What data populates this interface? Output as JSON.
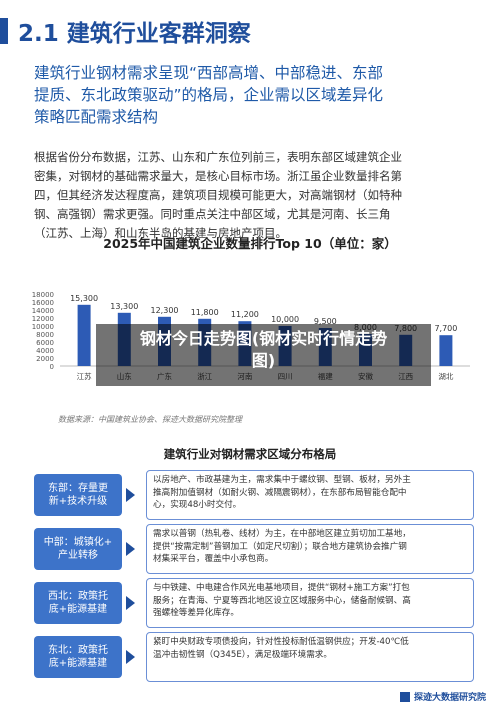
{
  "section": {
    "title": "2.1 建筑行业客群洞察"
  },
  "headline": {
    "line1": "建筑行业钢材需求呈现“西部高增、中部稳进、东部",
    "line2": "提质、东北政策驱动”的格局，企业需以区域差异化",
    "line3": "策略匹配需求结构"
  },
  "body": {
    "line1": "根据省份分布数据，江苏、山东和广东位列前三，表明东部区域建筑企业",
    "line2": "密集，对钢材的基础需求量大，是核心目标市场。浙江虽企业数量排名第",
    "line3": "四，但其经济发达程度高，建筑项目规模可能更大，对高端钢材（如特种",
    "line4": "钢、高强钢）需求更强。同时重点关注中部区域，尤其是河南、长三角",
    "line5": "（江苏、上海）和山东半岛的基建与房地产项目。"
  },
  "chart_data": {
    "type": "bar",
    "title": "2025年中国建筑企业数量排行Top 10（单位：家）",
    "categories": [
      "江苏",
      "山东",
      "广东",
      "浙江",
      "河南",
      "四川",
      "福建",
      "安徽",
      "江西",
      "湖北"
    ],
    "values": [
      15300,
      13300,
      12300,
      11800,
      11200,
      10000,
      9500,
      8000,
      7800,
      7700
    ],
    "data_labels": [
      "15,300",
      "13,300",
      "12,300",
      "11,800",
      "11,200",
      "10,000",
      "9,500",
      "8,000",
      "7,800",
      "7,700"
    ],
    "y_ticks": [
      "0",
      "2000",
      "4000",
      "6000",
      "8000",
      "10000",
      "12000",
      "14000",
      "16000",
      "18000"
    ],
    "ylim": [
      0,
      18000
    ],
    "bar_color": "#2d5bb5"
  },
  "overlay": {
    "line1": "钢材今日走势图(钢材实时行情走势",
    "line2": "图)"
  },
  "source": "数据来源：中国建筑业协会、探迹大数据研究院整理",
  "table": {
    "title": "建筑行业对钢材需求区域分布格局",
    "rows": [
      {
        "region_line1": "东部：存量更",
        "region_line2": "新+技术升级",
        "desc_line1": "以房地产、市政基建为主，需求集中于螺纹钢、型钢、板材，另外主",
        "desc_line2": "推高附加值钢材（如耐火钢、减隔震钢材），在东部布局智能仓配中",
        "desc_line3": "心，实现48小时交付。"
      },
      {
        "region_line1": "中部：城镇化+",
        "region_line2": "产业转移",
        "desc_line1": "需求以普钢（热轧卷、线材）为主，在中部地区建立剪切加工基地，",
        "desc_line2": "提供“按需定制”普钢加工（如定尺切割）；联合地方建筑协会推广钢",
        "desc_line3": "材集采平台，覆盖中小承包商。"
      },
      {
        "region_line1": "西北：政策托",
        "region_line2": "底+能源基建",
        "desc_line1": "与中铁建、中电建合作风光电基地项目，提供“钢材+施工方案”打包",
        "desc_line2": "服务；在青海、宁夏等西北地区设立区域服务中心，储备耐候钢、高",
        "desc_line3": "强螺栓等差异化库存。"
      },
      {
        "region_line1": "东北：政策托",
        "region_line2": "底+能源基建",
        "desc_line1": "紧盯中央财政专项债投向，针对性投标耐低温钢供应；开发-40℃低",
        "desc_line2": "温冲击韧性钢（Q345E），满足极端环境需求。",
        "desc_line3": ""
      }
    ]
  },
  "footer": {
    "brand": "探迹大数据研究院"
  }
}
